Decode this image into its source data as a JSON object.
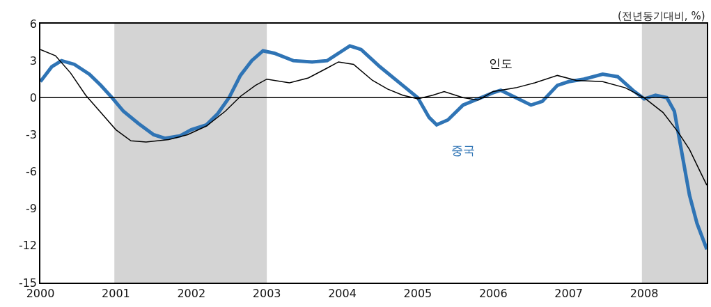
{
  "chart_data": {
    "type": "line",
    "ylabel": "(전년동기대비, %)",
    "xlim": [
      2000,
      2008.83
    ],
    "xticks": [
      2000,
      2001,
      2002,
      2003,
      2004,
      2005,
      2006,
      2007,
      2008
    ],
    "ylim": [
      -15,
      6
    ],
    "yticks": [
      -15,
      -12,
      -9,
      -6,
      -3,
      0,
      3,
      6
    ],
    "grid": false,
    "legend": false,
    "series": [
      {
        "name": "중국",
        "color": "#2f74b5",
        "x": [
          2000.0,
          2000.15,
          2000.28,
          2000.45,
          2000.65,
          2000.8,
          2000.95,
          2001.1,
          2001.3,
          2001.5,
          2001.65,
          2001.85,
          2002.0,
          2002.2,
          2002.35,
          2002.5,
          2002.65,
          2002.8,
          2002.95,
          2003.1,
          2003.35,
          2003.6,
          2003.8,
          2004.0,
          2004.1,
          2004.25,
          2004.5,
          2004.8,
          2005.0,
          2005.15,
          2005.25,
          2005.4,
          2005.6,
          2005.8,
          2006.0,
          2006.1,
          2006.3,
          2006.5,
          2006.65,
          2006.85,
          2007.0,
          2007.2,
          2007.45,
          2007.65,
          2007.85,
          2008.0,
          2008.15,
          2008.3,
          2008.4,
          2008.5,
          2008.6,
          2008.7,
          2008.83
        ],
        "values": [
          1.3,
          2.5,
          3.0,
          2.7,
          1.9,
          1.0,
          0,
          -1.1,
          -2.1,
          -3.0,
          -3.3,
          -3.1,
          -2.6,
          -2.2,
          -1.3,
          0,
          1.8,
          3.0,
          3.8,
          3.6,
          3.0,
          2.9,
          3.0,
          3.8,
          4.2,
          3.9,
          2.5,
          1.0,
          0,
          -1.6,
          -2.2,
          -1.8,
          -0.6,
          -0.1,
          0.4,
          0.6,
          0,
          -0.6,
          -0.3,
          1.0,
          1.3,
          1.5,
          1.9,
          1.7,
          0.6,
          -0.1,
          0.2,
          0,
          -1.1,
          -4.5,
          -7.9,
          -10.2,
          -12.3
        ]
      },
      {
        "name": "인도",
        "color": "#000000",
        "x": [
          2000.0,
          2000.2,
          2000.4,
          2000.6,
          2000.8,
          2001.0,
          2001.2,
          2001.4,
          2001.7,
          2001.95,
          2002.2,
          2002.45,
          2002.65,
          2002.85,
          2003.0,
          2003.3,
          2003.55,
          2003.8,
          2003.95,
          2004.15,
          2004.4,
          2004.6,
          2004.8,
          2005.0,
          2005.2,
          2005.35,
          2005.6,
          2005.8,
          2006.0,
          2006.3,
          2006.55,
          2006.85,
          2007.1,
          2007.45,
          2007.75,
          2008.0,
          2008.25,
          2008.45,
          2008.6,
          2008.75,
          2008.83
        ],
        "values": [
          3.9,
          3.4,
          2.0,
          0.2,
          -1.2,
          -2.6,
          -3.5,
          -3.6,
          -3.4,
          -3.0,
          -2.3,
          -1.1,
          0.1,
          1.0,
          1.5,
          1.2,
          1.6,
          2.4,
          2.9,
          2.7,
          1.4,
          0.7,
          0.2,
          -0.1,
          0.2,
          0.5,
          0,
          -0.2,
          0.5,
          0.8,
          1.2,
          1.8,
          1.4,
          1.3,
          0.8,
          0,
          -1.2,
          -2.8,
          -4.2,
          -6.1,
          -7.1
        ]
      }
    ],
    "ref_lines": [
      {
        "axis": "y",
        "value": 0,
        "color": "#000000"
      }
    ],
    "bands": [
      {
        "axis": "x",
        "from": 2000.98,
        "to": 2003.0,
        "color": "#d4d4d4"
      },
      {
        "axis": "x",
        "from": 2007.97,
        "to": 2008.83,
        "color": "#d4d4d4"
      }
    ]
  }
}
